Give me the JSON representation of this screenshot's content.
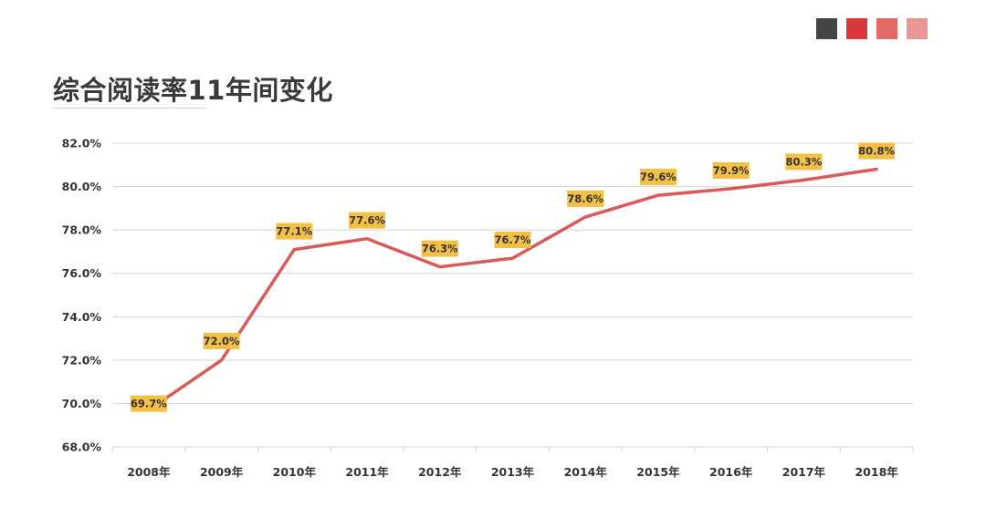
{
  "title": "综合阅读率11年间变化",
  "swatches": [
    "#454545",
    "#d9383a",
    "#e36a64",
    "#ea9794"
  ],
  "chart_data": {
    "type": "line",
    "title": "综合阅读率11年间变化",
    "categories": [
      "2008年",
      "2009年",
      "2010年",
      "2011年",
      "2012年",
      "2013年",
      "2014年",
      "2015年",
      "2016年",
      "2017年",
      "2018年"
    ],
    "series": [
      {
        "values": [
          69.7,
          72.0,
          77.1,
          77.6,
          76.3,
          76.7,
          78.6,
          79.6,
          79.9,
          80.3,
          80.8
        ],
        "labels": [
          "69.7%",
          "72.0%",
          "77.1%",
          "77.6%",
          "76.3%",
          "76.7%",
          "78.6%",
          "79.6%",
          "79.9%",
          "80.3%",
          "80.8%"
        ]
      }
    ],
    "yticks": [
      "68.0%",
      "70.0%",
      "72.0%",
      "74.0%",
      "76.0%",
      "78.0%",
      "80.0%",
      "82.0%"
    ],
    "ylim": [
      68,
      82
    ],
    "grid": true,
    "line_color": "#d95a57",
    "label_bg": "#f4bf45"
  }
}
